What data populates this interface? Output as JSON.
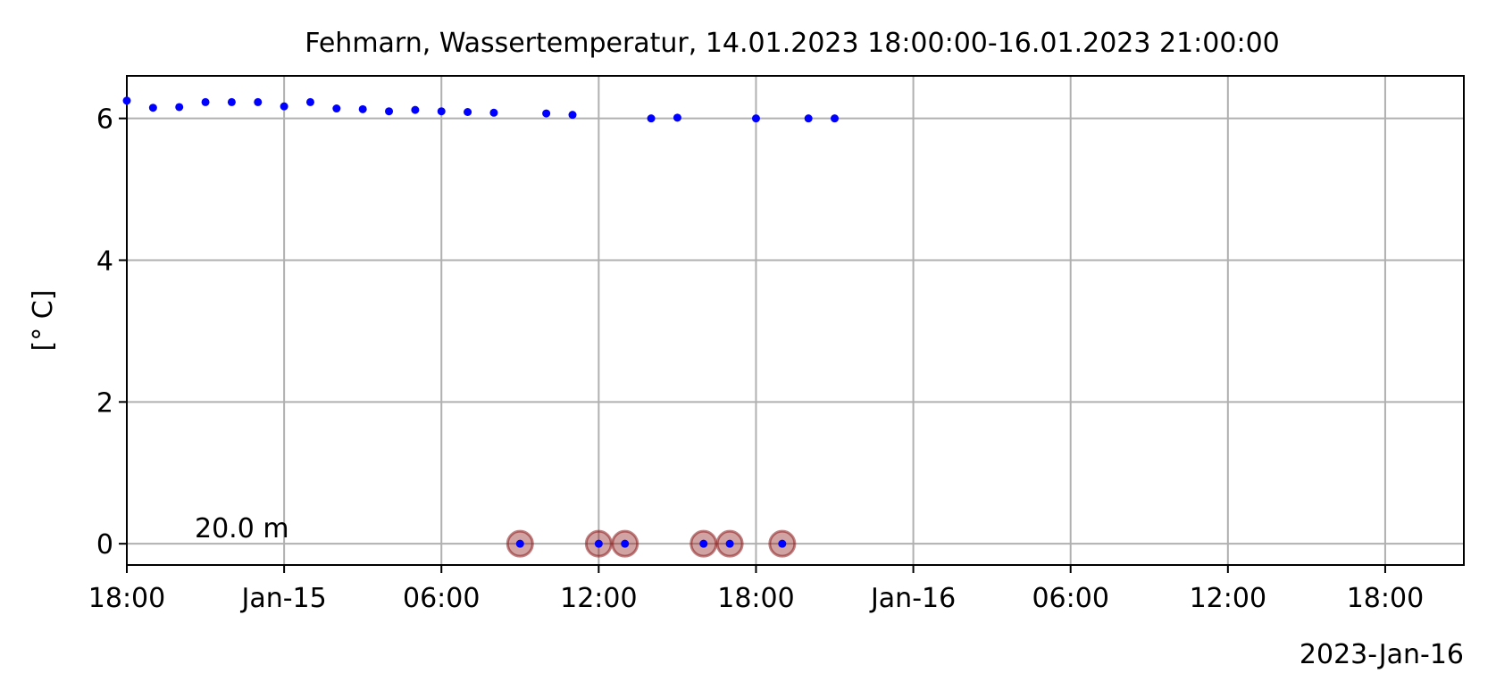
{
  "chart_data": {
    "type": "scatter",
    "title": "Fehmarn, Wassertemperatur, 14.01.2023 18:00:00-16.01.2023 21:00:00",
    "xlabel": "",
    "ylabel": "[° C]",
    "x_offset_label": "2023-Jan-16",
    "annotation": "20.0 m",
    "x_axis_type": "datetime",
    "xlim": [
      "2023-01-14T18:00",
      "2023-01-16T21:00"
    ],
    "ylim": [
      -0.3,
      6.6
    ],
    "yticks": [
      0,
      2,
      4,
      6
    ],
    "xticks": [
      {
        "t": "2023-01-14T18:00",
        "label": "18:00"
      },
      {
        "t": "2023-01-15T00:00",
        "label": "Jan-15"
      },
      {
        "t": "2023-01-15T06:00",
        "label": "06:00"
      },
      {
        "t": "2023-01-15T12:00",
        "label": "12:00"
      },
      {
        "t": "2023-01-15T18:00",
        "label": "18:00"
      },
      {
        "t": "2023-01-16T00:00",
        "label": "Jan-16"
      },
      {
        "t": "2023-01-16T06:00",
        "label": "06:00"
      },
      {
        "t": "2023-01-16T12:00",
        "label": "12:00"
      },
      {
        "t": "2023-01-16T18:00",
        "label": "18:00"
      }
    ],
    "grid": true,
    "series": [
      {
        "color": "#0000ff",
        "marker": "dot",
        "points": [
          {
            "x": "2023-01-14T18:00",
            "y": 6.25
          },
          {
            "x": "2023-01-14T19:00",
            "y": 6.15
          },
          {
            "x": "2023-01-14T20:00",
            "y": 6.16
          },
          {
            "x": "2023-01-14T21:00",
            "y": 6.23
          },
          {
            "x": "2023-01-14T22:00",
            "y": 6.23
          },
          {
            "x": "2023-01-14T23:00",
            "y": 6.23
          },
          {
            "x": "2023-01-15T00:00",
            "y": 6.17
          },
          {
            "x": "2023-01-15T01:00",
            "y": 6.23
          },
          {
            "x": "2023-01-15T02:00",
            "y": 6.14
          },
          {
            "x": "2023-01-15T03:00",
            "y": 6.13
          },
          {
            "x": "2023-01-15T04:00",
            "y": 6.1
          },
          {
            "x": "2023-01-15T05:00",
            "y": 6.12
          },
          {
            "x": "2023-01-15T06:00",
            "y": 6.1
          },
          {
            "x": "2023-01-15T07:00",
            "y": 6.09
          },
          {
            "x": "2023-01-15T08:00",
            "y": 6.08
          },
          {
            "x": "2023-01-15T10:00",
            "y": 6.07
          },
          {
            "x": "2023-01-15T11:00",
            "y": 6.05
          },
          {
            "x": "2023-01-15T14:00",
            "y": 6.0
          },
          {
            "x": "2023-01-15T15:00",
            "y": 6.01
          },
          {
            "x": "2023-01-15T18:00",
            "y": 6.0
          },
          {
            "x": "2023-01-15T20:00",
            "y": 6.0
          },
          {
            "x": "2023-01-15T21:00",
            "y": 6.0
          }
        ]
      },
      {
        "color": "#0000ff",
        "marker": "dot-flagged",
        "flag_color": "#8b1a1a",
        "points": [
          {
            "x": "2023-01-15T09:00",
            "y": 0
          },
          {
            "x": "2023-01-15T12:00",
            "y": 0
          },
          {
            "x": "2023-01-15T13:00",
            "y": 0
          },
          {
            "x": "2023-01-15T16:00",
            "y": 0
          },
          {
            "x": "2023-01-15T17:00",
            "y": 0
          },
          {
            "x": "2023-01-15T19:00",
            "y": 0
          }
        ]
      }
    ]
  }
}
